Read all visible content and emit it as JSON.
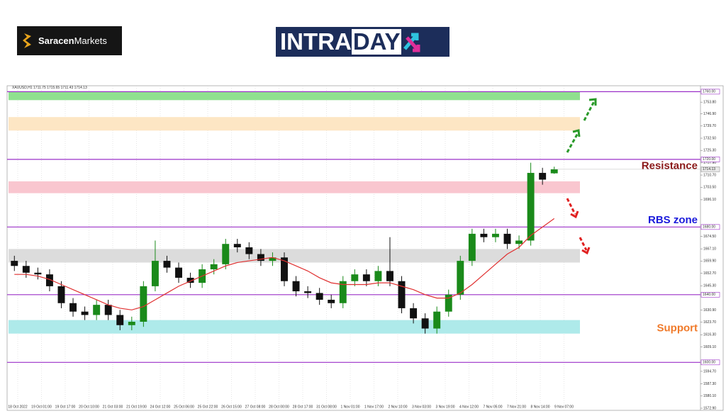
{
  "brand": [
    "Saracen",
    "Markets"
  ],
  "banner": [
    "INTRA",
    "DAY"
  ],
  "chart_data": {
    "type": "candlestick",
    "symbol": "XAUUSD,H1",
    "open": [
      1660,
      1657,
      1653,
      1652,
      1645,
      1635,
      1630,
      1628,
      1634,
      1628,
      1622,
      1624,
      1645,
      1660,
      1656,
      1650,
      1647,
      1655,
      1658,
      1670,
      1668,
      1664,
      1660,
      1662,
      1648,
      1642,
      1641,
      1637,
      1635,
      1648,
      1652,
      1648,
      1654,
      1648,
      1632,
      1626,
      1620,
      1630,
      1640,
      1660,
      1676,
      1674,
      1676,
      1670,
      1672,
      1712,
      1711.75
    ],
    "high": [
      1663,
      1660,
      1656,
      1655,
      1648,
      1638,
      1633,
      1637,
      1637,
      1631,
      1627,
      1648,
      1672,
      1663,
      1659,
      1653,
      1658,
      1661,
      1673,
      1673,
      1671,
      1667,
      1665,
      1665,
      1651,
      1645,
      1644,
      1640,
      1651,
      1655,
      1655,
      1657,
      1674,
      1651,
      1635,
      1629,
      1633,
      1643,
      1663,
      1679,
      1679,
      1679,
      1679,
      1675,
      1718,
      1715,
      1715.65
    ],
    "low": [
      1654,
      1650,
      1649,
      1642,
      1632,
      1627,
      1625,
      1625,
      1625,
      1619,
      1619,
      1621,
      1642,
      1653,
      1647,
      1644,
      1644,
      1652,
      1655,
      1665,
      1661,
      1657,
      1657,
      1645,
      1639,
      1638,
      1634,
      1632,
      1632,
      1645,
      1645,
      1645,
      1645,
      1629,
      1623,
      1617,
      1617,
      1627,
      1637,
      1657,
      1671,
      1671,
      1667,
      1667,
      1669,
      1705,
      1711.43
    ],
    "close": [
      1657,
      1653,
      1652,
      1645,
      1635,
      1630,
      1628,
      1634,
      1628,
      1622,
      1624,
      1645,
      1660,
      1656,
      1650,
      1647,
      1655,
      1658,
      1670,
      1668,
      1664,
      1660,
      1662,
      1648,
      1642,
      1641,
      1637,
      1635,
      1648,
      1652,
      1648,
      1654,
      1648,
      1632,
      1626,
      1620,
      1630,
      1640,
      1660,
      1676,
      1674,
      1676,
      1670,
      1672,
      1712,
      1708,
      1714.13
    ],
    "up_color": "#1a8a1a",
    "down_color": "#111111",
    "ma": {
      "color": "#e03030",
      "values": [
        1652,
        1652,
        1651,
        1649,
        1646,
        1643,
        1640,
        1637,
        1634,
        1632,
        1631,
        1633,
        1637,
        1641,
        1645,
        1648,
        1651,
        1654,
        1657,
        1659,
        1660,
        1661,
        1662,
        1660,
        1657,
        1654,
        1650,
        1647,
        1646,
        1646,
        1646,
        1647,
        1647,
        1645,
        1643,
        1640,
        1638,
        1638,
        1641,
        1646,
        1652,
        1658,
        1664,
        1668,
        1675,
        1680,
        1685
      ]
    },
    "ylim": [
      1572.9,
      1763.5
    ],
    "yticks": [
      {
        "value": 1753.8,
        "label": "1753.80"
      },
      {
        "value": 1746.9,
        "label": "1746.90"
      },
      {
        "value": 1739.7,
        "label": "1739.70"
      },
      {
        "value": 1732.5,
        "label": "1732.50"
      },
      {
        "value": 1725.3,
        "label": "1725.30"
      },
      {
        "value": 1717.9,
        "label": "1717.90"
      },
      {
        "value": 1710.7,
        "label": "1710.70"
      },
      {
        "value": 1703.5,
        "label": "1703.50"
      },
      {
        "value": 1696.1,
        "label": "1696.10"
      },
      {
        "value": 1674.5,
        "label": "1674.50"
      },
      {
        "value": 1667.1,
        "label": "1667.10"
      },
      {
        "value": 1659.9,
        "label": "1659.90"
      },
      {
        "value": 1652.7,
        "label": "1652.70"
      },
      {
        "value": 1645.3,
        "label": "1645.30"
      },
      {
        "value": 1630.9,
        "label": "1630.90"
      },
      {
        "value": 1623.7,
        "label": "1623.70"
      },
      {
        "value": 1616.3,
        "label": "1616.30"
      },
      {
        "value": 1609.1,
        "label": "1609.10"
      },
      {
        "value": 1594.7,
        "label": "1594.70"
      },
      {
        "value": 1587.3,
        "label": "1587.30"
      },
      {
        "value": 1580.1,
        "label": "1580.10"
      },
      {
        "value": 1572.9,
        "label": "1572.90"
      }
    ],
    "time_labels": [
      "18 Oct 2022",
      "19 Oct 01:00",
      "19 Oct 17:00",
      "20 Oct 10:00",
      "21 Oct 03:00",
      "21 Oct 19:00",
      "24 Oct 12:00",
      "25 Oct 06:00",
      "25 Oct 22:00",
      "26 Oct 15:00",
      "27 Oct 08:00",
      "28 Oct 00:00",
      "28 Oct 17:00",
      "31 Oct 08:00",
      "1 Nov 01:00",
      "1 Nov 17:00",
      "2 Nov 10:00",
      "3 Nov 03:00",
      "3 Nov 19:00",
      "4 Nov 12:00",
      "7 Nov 05:00",
      "7 Nov 21:00",
      "8 Nov 14:00",
      "9 Nov 07:00"
    ],
    "levels": {
      "color": "#9b30c8",
      "values": [
        {
          "value": 1760,
          "label": "1760.00"
        },
        {
          "value": 1720,
          "label": "1720.00"
        },
        {
          "value": 1680,
          "label": "1680.00"
        },
        {
          "value": 1640,
          "label": "1640.00"
        },
        {
          "value": 1600,
          "label": "1600.00"
        }
      ]
    },
    "zones": [
      {
        "low": 1755,
        "high": 1760,
        "color": "#8fe08f"
      },
      {
        "low": 1737,
        "high": 1745,
        "color": "#fde6c4"
      },
      {
        "low": 1700,
        "high": 1707,
        "color": "#f9c6cf"
      },
      {
        "low": 1659,
        "high": 1667,
        "color": "#dcdcdc"
      },
      {
        "low": 1617,
        "high": 1625,
        "color": "#aeeaea"
      }
    ],
    "annotations": [
      {
        "text": "Resistance",
        "y": 1716,
        "color": "#8b1a1a"
      },
      {
        "text": "RBS zone",
        "y": 1684,
        "color": "#1a1adb"
      },
      {
        "text": "Support",
        "y": 1620,
        "color": "#f07a2a"
      }
    ]
  }
}
